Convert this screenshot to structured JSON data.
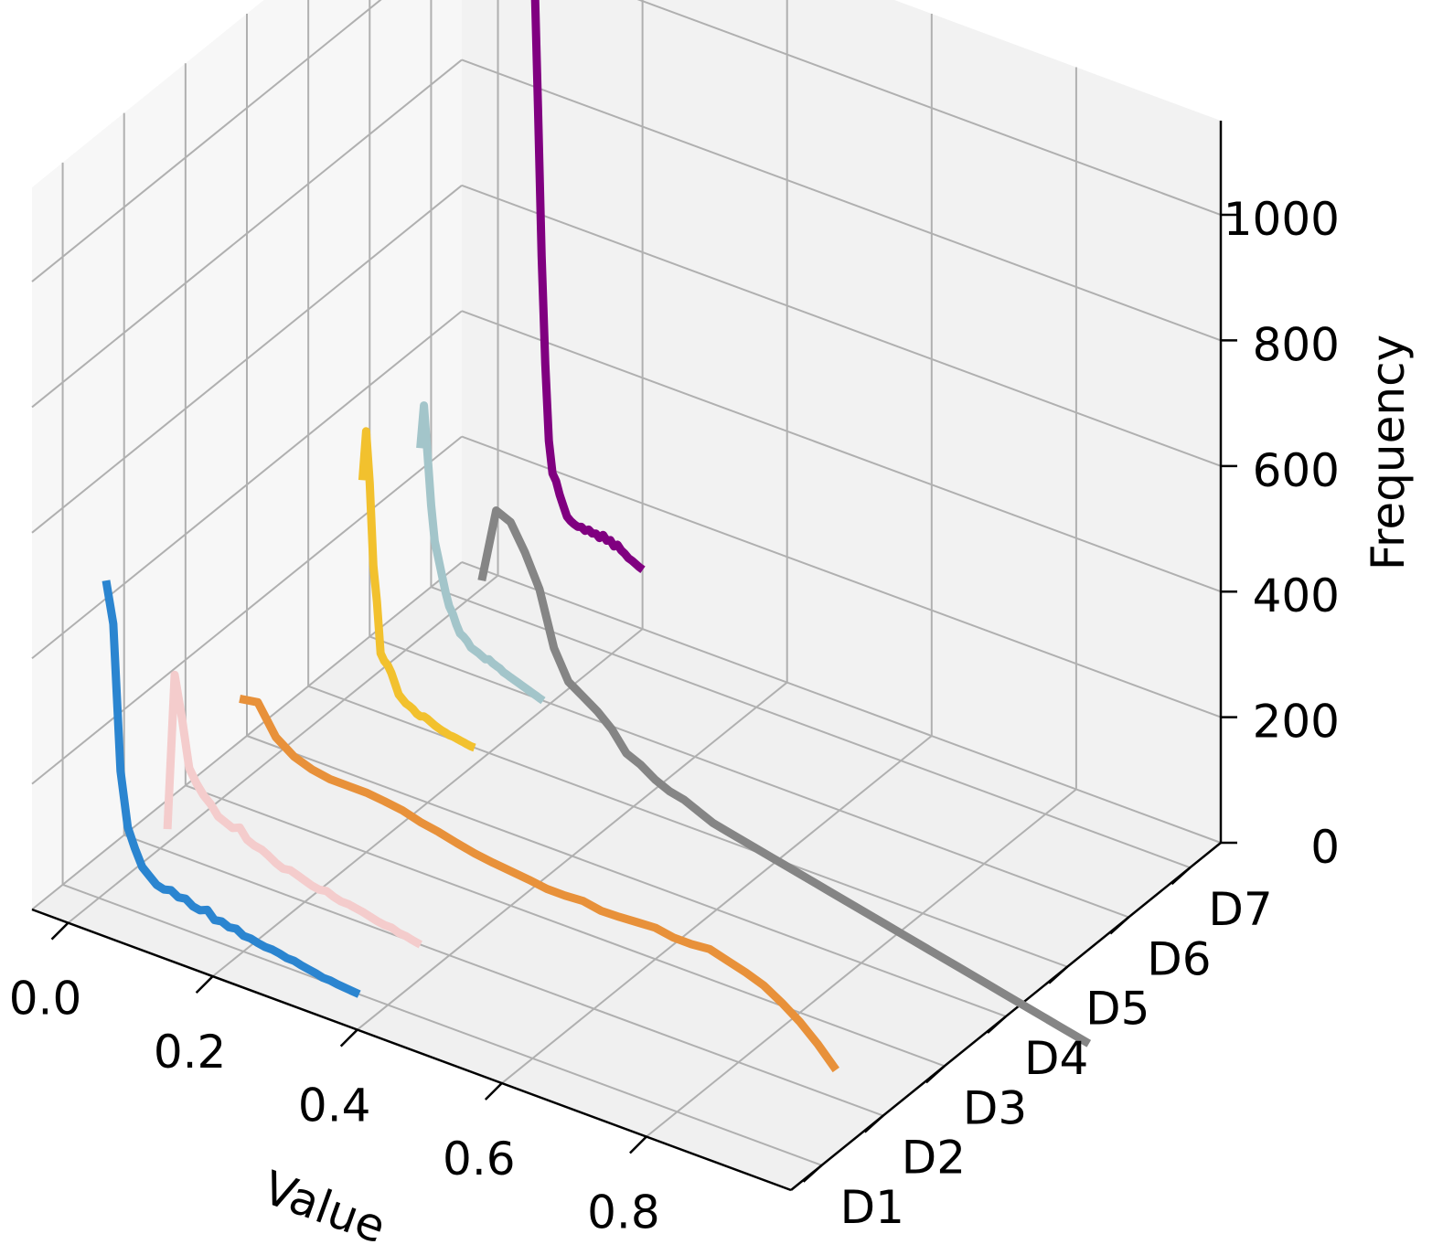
{
  "chart_data": {
    "type": "line",
    "projection": "3d",
    "xlabel": "Value",
    "ylabel": "",
    "zlabel": "Frequency",
    "x_ticks": [
      "0.0",
      "0.2",
      "0.4",
      "0.6",
      "0.8"
    ],
    "y_ticks": [
      "D1",
      "D2",
      "D3",
      "D4",
      "D5",
      "D6",
      "D7"
    ],
    "z_ticks": [
      "0",
      "200",
      "400",
      "600",
      "800",
      "1000"
    ],
    "xlim": [
      -0.05,
      1.0
    ],
    "ylim": [
      0,
      7
    ],
    "zlim": [
      0,
      1150
    ],
    "grid": true,
    "series": [
      {
        "color": "#2b85d0",
        "depth": 0.5,
        "x": [
          0.01,
          0.02,
          0.03,
          0.04,
          0.05,
          0.06,
          0.07,
          0.08,
          0.09,
          0.1,
          0.11,
          0.12,
          0.13,
          0.14,
          0.15,
          0.16,
          0.17,
          0.18,
          0.19,
          0.2,
          0.21,
          0.22,
          0.23,
          0.24,
          0.25,
          0.26,
          0.27,
          0.28,
          0.29,
          0.3,
          0.31,
          0.32,
          0.33,
          0.34,
          0.35,
          0.36
        ],
        "z": [
          510,
          445,
          215,
          130,
          100,
          75,
          65,
          55,
          52,
          55,
          48,
          50,
          42,
          40,
          45,
          33,
          35,
          30,
          32,
          25,
          25,
          22,
          20,
          20,
          18,
          15,
          15,
          12,
          10,
          8,
          5,
          5,
          3,
          2,
          1,
          0
        ]
      },
      {
        "color": "#f4cccc",
        "depth": 1.5,
        "x": [
          0.01,
          0.02,
          0.03,
          0.04,
          0.05,
          0.06,
          0.07,
          0.08,
          0.09,
          0.1,
          0.11,
          0.12,
          0.13,
          0.14,
          0.15,
          0.16,
          0.17,
          0.18,
          0.19,
          0.2,
          0.21,
          0.22,
          0.23,
          0.24,
          0.25,
          0.26,
          0.27,
          0.28,
          0.29,
          0.3,
          0.31,
          0.32,
          0.33,
          0.34,
          0.35,
          0.36
        ],
        "z": [
          35,
          285,
          220,
          145,
          125,
          110,
          100,
          85,
          80,
          75,
          80,
          65,
          60,
          58,
          52,
          45,
          40,
          42,
          38,
          34,
          30,
          28,
          30,
          25,
          22,
          22,
          20,
          18,
          15,
          12,
          10,
          10,
          6,
          5,
          2,
          0
        ]
      },
      {
        "color": "#e8913a",
        "depth": 2.5,
        "x": [
          0.025,
          0.05,
          0.075,
          0.1,
          0.125,
          0.15,
          0.175,
          0.2,
          0.225,
          0.25,
          0.275,
          0.3,
          0.325,
          0.35,
          0.375,
          0.4,
          0.425,
          0.45,
          0.475,
          0.5,
          0.525,
          0.55,
          0.575,
          0.6,
          0.625,
          0.65,
          0.675,
          0.7,
          0.725,
          0.75,
          0.775,
          0.8,
          0.825,
          0.85
        ],
        "z": [
          170,
          175,
          130,
          110,
          100,
          95,
          95,
          95,
          92,
          88,
          80,
          75,
          68,
          62,
          58,
          55,
          52,
          48,
          48,
          50,
          45,
          46,
          48,
          50,
          45,
          45,
          48,
          40,
          32,
          22,
          5,
          -15,
          -40,
          -70
        ]
      },
      {
        "color": "#f2c12e",
        "depth": 4.5,
        "x": [
          0.025,
          0.03,
          0.035,
          0.04,
          0.045,
          0.05,
          0.055,
          0.06,
          0.065,
          0.07,
          0.075,
          0.08,
          0.085,
          0.09,
          0.095,
          0.1,
          0.105,
          0.11,
          0.115,
          0.12,
          0.125,
          0.13,
          0.135,
          0.14,
          0.145,
          0.15,
          0.155,
          0.16,
          0.165,
          0.17,
          0.175,
          0.18
        ],
        "z": [
          360,
          440,
          360,
          230,
          175,
          95,
          85,
          80,
          70,
          55,
          40,
          35,
          30,
          28,
          25,
          20,
          18,
          20,
          18,
          15,
          12,
          10,
          8,
          7,
          5,
          5,
          4,
          3,
          2,
          1,
          0,
          0
        ]
      },
      {
        "color": "#a3c5ca",
        "depth": 5.5,
        "x": [
          0.02,
          0.025,
          0.03,
          0.035,
          0.04,
          0.045,
          0.05,
          0.055,
          0.06,
          0.065,
          0.07,
          0.075,
          0.08,
          0.085,
          0.09,
          0.095,
          0.1,
          0.105,
          0.11,
          0.115,
          0.12,
          0.125,
          0.13,
          0.135,
          0.14,
          0.145,
          0.15,
          0.155,
          0.16,
          0.165,
          0.17,
          0.175,
          0.18,
          0.185,
          0.19
        ],
        "z": [
          330,
          400,
          325,
          245,
          190,
          165,
          140,
          115,
          95,
          85,
          70,
          58,
          55,
          50,
          42,
          40,
          38,
          35,
          32,
          34,
          30,
          28,
          26,
          22,
          20,
          18,
          16,
          14,
          12,
          10,
          8,
          6,
          4,
          2,
          0
        ]
      },
      {
        "color": "#858585",
        "depth": 6.5,
        "x": [
          0.02,
          0.04,
          0.06,
          0.08,
          0.1,
          0.12,
          0.14,
          0.16,
          0.18,
          0.2,
          0.22,
          0.24,
          0.26,
          0.28,
          0.3,
          0.32,
          0.34,
          0.36,
          0.38,
          0.4,
          0.42,
          0.44,
          0.46,
          0.48,
          0.5,
          0.52,
          0.54,
          0.56,
          0.58,
          0.6,
          0.62,
          0.64,
          0.66,
          0.68,
          0.7,
          0.72,
          0.74,
          0.76,
          0.78,
          0.8,
          0.82,
          0.84,
          0.86
        ],
        "z": [
          40,
          160,
          150,
          110,
          60,
          -25,
          -70,
          -85,
          -100,
          -120,
          -150,
          -160,
          -175,
          -185,
          -190,
          -200,
          -210,
          -215,
          -220,
          -225,
          -230,
          -235,
          -240,
          -245,
          -250,
          -255,
          -260,
          -265,
          -270,
          -275,
          -280,
          -285,
          -290,
          -295,
          -300,
          -305,
          -310,
          -315,
          -320,
          -325,
          -330,
          -335,
          -340
        ]
      },
      {
        "color": "#800080",
        "depth": 7.3,
        "x": [
          0.02,
          0.025,
          0.03,
          0.035,
          0.04,
          0.045,
          0.05,
          0.055,
          0.06,
          0.065,
          0.07,
          0.075,
          0.08,
          0.085,
          0.09,
          0.095,
          0.1,
          0.105,
          0.11,
          0.115,
          0.12,
          0.125,
          0.13,
          0.135,
          0.14,
          0.145,
          0.15,
          0.155,
          0.16,
          0.165,
          0.17,
          0.175
        ],
        "z": [
          1150,
          950,
          730,
          500,
          330,
          210,
          160,
          150,
          130,
          115,
          100,
          95,
          92,
          90,
          92,
          88,
          92,
          88,
          90,
          85,
          92,
          85,
          88,
          80,
          85,
          78,
          75,
          70,
          68,
          65,
          62,
          60
        ]
      }
    ]
  }
}
